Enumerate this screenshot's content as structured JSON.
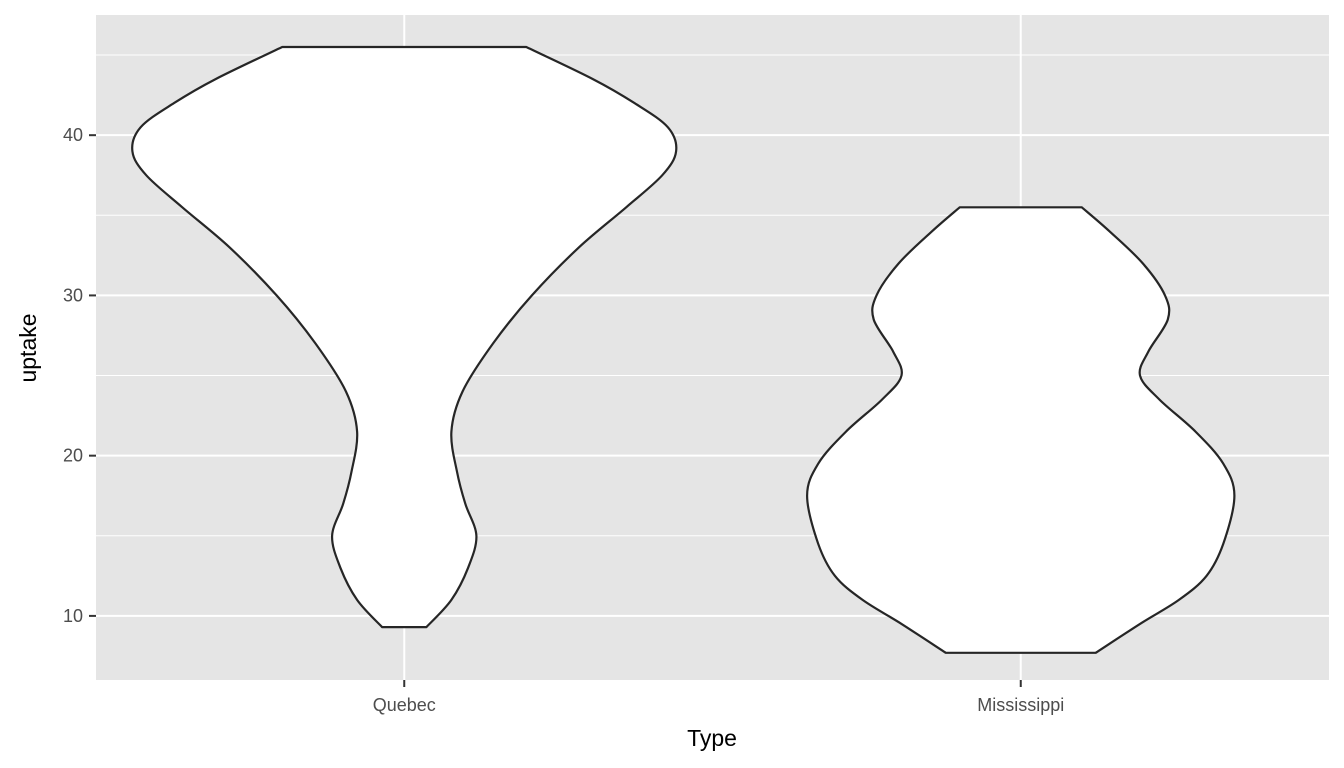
{
  "chart_data": {
    "type": "violin",
    "title": "",
    "xlabel": "Type",
    "ylabel": "uptake",
    "categories": [
      "Quebec",
      "Mississippi"
    ],
    "ylim": [
      6.0,
      47.5
    ],
    "yticks": [
      10,
      20,
      30,
      40
    ],
    "grid": true,
    "legend": "none",
    "colors": {
      "panel": "#e5e5e5",
      "grid": "#ffffff",
      "fill": "#ffffff",
      "outline": "#262626"
    },
    "series": [
      {
        "category": "Quebec",
        "range": [
          9.3,
          45.5
        ],
        "density_profile": [
          [
            9.3,
            0.08
          ],
          [
            11.0,
            0.17
          ],
          [
            13.0,
            0.23
          ],
          [
            15.0,
            0.26
          ],
          [
            17.0,
            0.22
          ],
          [
            19.0,
            0.19
          ],
          [
            21.5,
            0.17
          ],
          [
            24.0,
            0.21
          ],
          [
            27.0,
            0.32
          ],
          [
            30.0,
            0.46
          ],
          [
            33.0,
            0.63
          ],
          [
            35.5,
            0.8
          ],
          [
            37.5,
            0.93
          ],
          [
            39.0,
            0.98
          ],
          [
            40.5,
            0.95
          ],
          [
            42.0,
            0.83
          ],
          [
            43.5,
            0.68
          ],
          [
            45.5,
            0.44
          ]
        ]
      },
      {
        "category": "Mississippi",
        "range": [
          7.7,
          35.5
        ],
        "density_profile": [
          [
            7.7,
            0.27
          ],
          [
            9.5,
            0.43
          ],
          [
            11.0,
            0.57
          ],
          [
            12.5,
            0.67
          ],
          [
            14.5,
            0.73
          ],
          [
            17.5,
            0.77
          ],
          [
            19.5,
            0.73
          ],
          [
            21.5,
            0.63
          ],
          [
            23.5,
            0.5
          ],
          [
            25.0,
            0.43
          ],
          [
            26.5,
            0.46
          ],
          [
            28.5,
            0.53
          ],
          [
            30.0,
            0.52
          ],
          [
            32.0,
            0.44
          ],
          [
            34.0,
            0.32
          ],
          [
            35.5,
            0.22
          ]
        ]
      }
    ]
  }
}
